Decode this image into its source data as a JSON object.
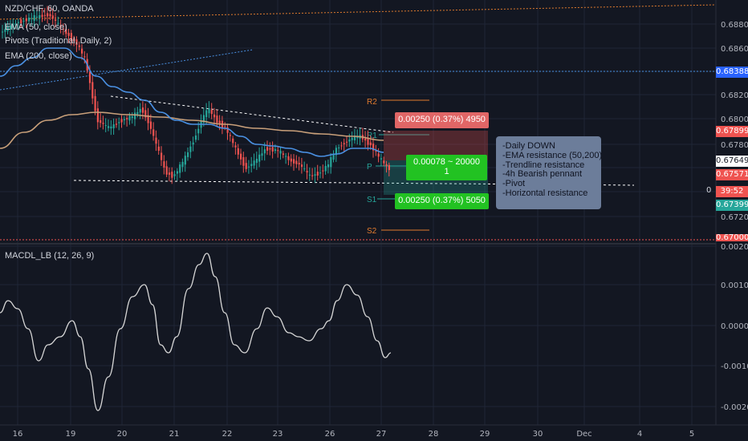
{
  "main_legend": {
    "symbol": "NZD/CHF, 60, OANDA",
    "ema50": "EMA (50, close)",
    "pivots": "Pivots (Traditional, Daily, 2)",
    "ema200": "EMA (200, close)"
  },
  "macd_legend": "MACDL_LB (12, 26, 9)",
  "price_axis": [
    "0.68800",
    "0.68600",
    "0.68200",
    "0.68000",
    "0.67800",
    "0.67400",
    "0.67200"
  ],
  "price_tags": [
    {
      "label": "0.68388",
      "bg": "#2962ff",
      "fg": "#ffffff"
    },
    {
      "label": "0.67899",
      "bg": "#ef5350",
      "fg": "#ffffff"
    },
    {
      "label": "0.67649",
      "bg": "#ffffff",
      "fg": "#131722"
    },
    {
      "label": "0.67571",
      "bg": "#ef5350",
      "fg": "#ffffff"
    },
    {
      "label": "39:52",
      "bg": "#ef5350",
      "fg": "#ffffff"
    },
    {
      "label": "0.67399",
      "bg": "#26a69a",
      "fg": "#ffffff"
    },
    {
      "label": "0.67000",
      "bg": "#ef5350",
      "fg": "#ffffff"
    }
  ],
  "price_tag_prefix": "0",
  "macd_axis": [
    "0.0020",
    "0.0010",
    "0.0000",
    "-0.0010",
    "-0.0020"
  ],
  "time_axis": [
    "16",
    "19",
    "20",
    "21",
    "22",
    "23",
    "26",
    "27",
    "28",
    "29",
    "30",
    "Dec",
    "4",
    "5"
  ],
  "pivots": {
    "r2": "R2",
    "r1": "R1",
    "p": "P",
    "s1": "S1",
    "s2": "S2"
  },
  "position": {
    "target_label": "0.00250 (0.37%) 4950",
    "entry_label_line1": "0.00078 ~ 20000",
    "entry_label_line2": "1",
    "stop_label": "0.00250 (0.37%) 5050"
  },
  "notes": [
    "-Daily DOWN",
    "-EMA resistance (50,200)",
    "-Trendline resistance",
    "-4h Bearish pennant",
    "-Pivot",
    "-Horizontal resistance"
  ],
  "colors": {
    "background": "#131722",
    "up": "#26a69a",
    "down": "#ef5350",
    "ema50": "#4a90e2",
    "ema200": "#c9a07a",
    "macd": "#d6d6d6",
    "pivot": "#e07b2e"
  }
}
